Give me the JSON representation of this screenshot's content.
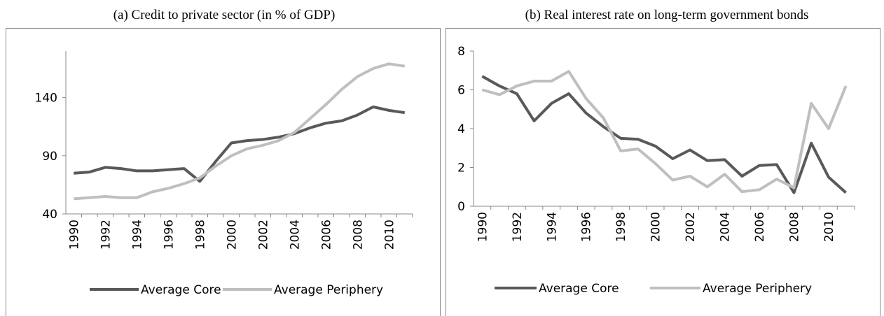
{
  "chart_data": [
    {
      "type": "line",
      "title": "(a) Credit to private sector (in % of GDP)",
      "x": [
        1990,
        1991,
        1992,
        1993,
        1994,
        1995,
        1996,
        1997,
        1998,
        1999,
        2000,
        2001,
        2002,
        2003,
        2004,
        2005,
        2006,
        2007,
        2008,
        2009,
        2010,
        2011
      ],
      "xlim": [
        1989.5,
        2011.5
      ],
      "xticks": [
        1990,
        1992,
        1994,
        1996,
        1998,
        2000,
        2002,
        2004,
        2006,
        2008,
        2010
      ],
      "ylim": [
        40,
        180
      ],
      "yticks": [
        40,
        90,
        140
      ],
      "legend": "bottom",
      "series": [
        {
          "name": "Average Core",
          "color": "#595959",
          "values": [
            75,
            76,
            80,
            79,
            77,
            77,
            78,
            79,
            68,
            85,
            101,
            103,
            104,
            106,
            109,
            114,
            118,
            120,
            125,
            132,
            129,
            127
          ]
        },
        {
          "name": "Average Periphery",
          "color": "#bfbfbf",
          "values": [
            53,
            54,
            55,
            54,
            54,
            59,
            62,
            66,
            71,
            81,
            90,
            96,
            99,
            103,
            110,
            122,
            134,
            147,
            158,
            165,
            169,
            167
          ]
        }
      ]
    },
    {
      "type": "line",
      "title": "(b) Real interest rate on long-term government bonds",
      "x": [
        1990,
        1991,
        1992,
        1993,
        1994,
        1995,
        1996,
        1997,
        1998,
        1999,
        2000,
        2001,
        2002,
        2003,
        2004,
        2005,
        2006,
        2007,
        2008,
        2009,
        2010,
        2011
      ],
      "xlim": [
        1989.5,
        2011.5
      ],
      "xticks": [
        1990,
        1992,
        1994,
        1996,
        1998,
        2000,
        2002,
        2004,
        2006,
        2008,
        2010
      ],
      "ylim": [
        0,
        8
      ],
      "yticks": [
        0,
        2,
        4,
        6,
        8
      ],
      "legend": "bottom",
      "series": [
        {
          "name": "Average Core",
          "color": "#595959",
          "values": [
            6.7,
            6.2,
            5.8,
            4.4,
            5.3,
            5.8,
            4.8,
            4.1,
            3.5,
            3.45,
            3.1,
            2.45,
            2.9,
            2.35,
            2.4,
            1.55,
            2.1,
            2.15,
            0.7,
            3.25,
            1.5,
            0.7
          ]
        },
        {
          "name": "Average Periphery",
          "color": "#bfbfbf",
          "values": [
            6.0,
            5.75,
            6.2,
            6.45,
            6.45,
            6.95,
            5.55,
            4.55,
            2.85,
            2.95,
            2.2,
            1.35,
            1.55,
            1.0,
            1.65,
            0.75,
            0.85,
            1.4,
            0.95,
            5.3,
            4.0,
            6.2
          ]
        }
      ]
    }
  ]
}
